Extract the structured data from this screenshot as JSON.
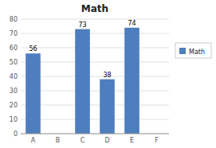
{
  "chart_data": {
    "type": "bar",
    "title": "Math",
    "categories": [
      "A",
      "B",
      "C",
      "D",
      "E",
      "F"
    ],
    "series": [
      {
        "name": "Math",
        "color": "#4E7EBD",
        "values": [
          56,
          0,
          73,
          38,
          74,
          0
        ],
        "value_labels": [
          "56",
          null,
          "73",
          "38",
          "74",
          null
        ]
      }
    ],
    "ylim": [
      0,
      80
    ],
    "yticks": [
      0,
      10,
      20,
      30,
      40,
      50,
      60,
      70,
      80
    ],
    "grid": true,
    "data_labels": true,
    "legend": "right"
  }
}
